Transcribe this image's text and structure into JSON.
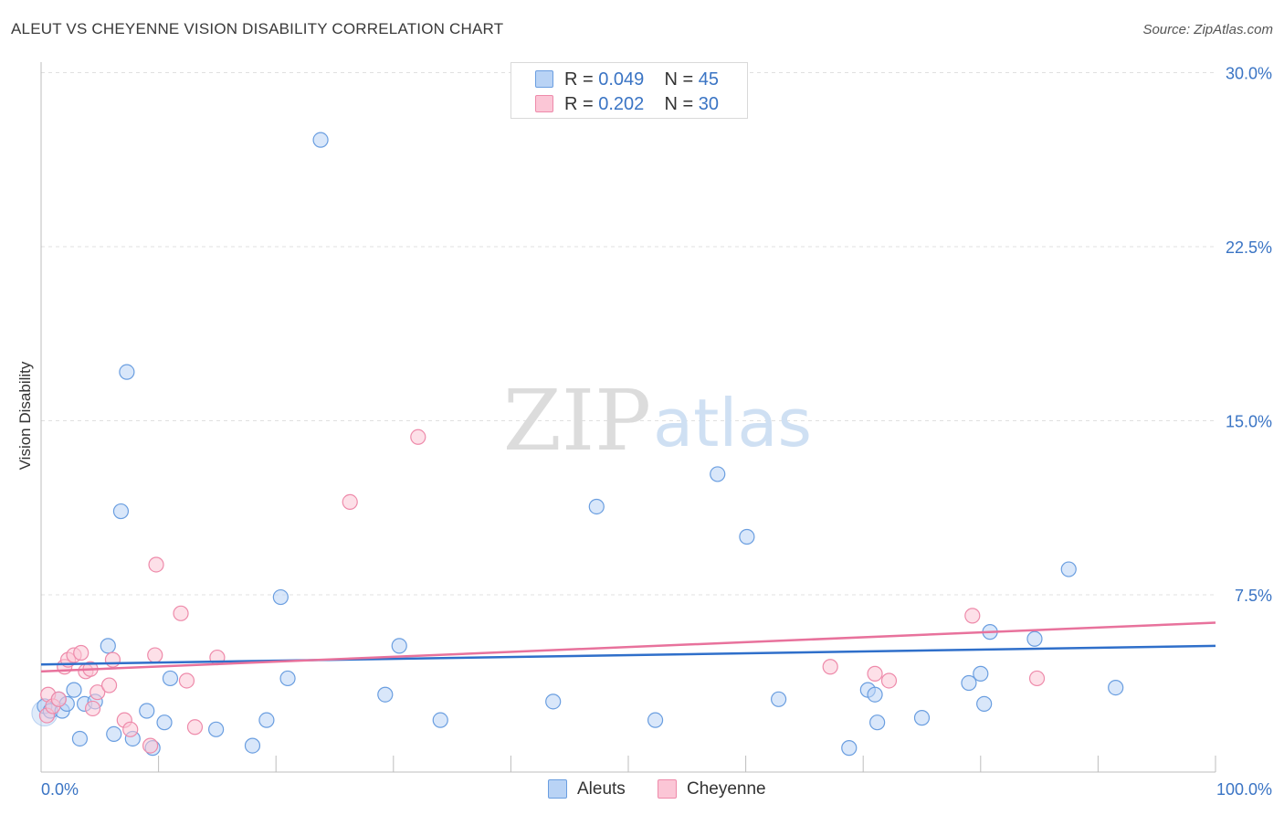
{
  "title": "ALEUT VS CHEYENNE VISION DISABILITY CORRELATION CHART",
  "source": "Source: ZipAtlas.com",
  "watermark": {
    "zip": "ZIP",
    "atlas": "atlas"
  },
  "colors": {
    "aleut_fill": "#b9d3f5",
    "aleut_stroke": "#6a9ee0",
    "aleut_line": "#2f6fca",
    "cheyenne_fill": "#fbc6d6",
    "cheyenne_stroke": "#ee8aaa",
    "cheyenne_line": "#e8729c",
    "axis_label": "#3a74c4",
    "grid": "#e0e0e0"
  },
  "legend": {
    "rows": [
      {
        "r_label": "R =",
        "r_value": "0.049",
        "n_label": "N =",
        "n_value": "45"
      },
      {
        "r_label": "R =",
        "r_value": "0.202",
        "n_label": "N =",
        "n_value": "30"
      }
    ],
    "bottom": [
      "Aleuts",
      "Cheyenne"
    ]
  },
  "chart_data": {
    "type": "scatter",
    "title": "ALEUT VS CHEYENNE VISION DISABILITY CORRELATION CHART",
    "xlabel": "",
    "ylabel": "Vision Disability",
    "xlim": [
      0,
      100
    ],
    "ylim": [
      0,
      31
    ],
    "x_tick_labels": [
      "0.0%",
      "100.0%"
    ],
    "y_ticks": [
      7.5,
      15.0,
      22.5,
      30.0
    ],
    "y_tick_labels": [
      "7.5%",
      "15.0%",
      "22.5%",
      "30.0%"
    ],
    "grid": true,
    "series": [
      {
        "name": "Aleuts",
        "trend": {
          "x": [
            0,
            100
          ],
          "y": [
            4.5,
            5.3
          ]
        },
        "points": [
          [
            0.3,
            2.7
          ],
          [
            0.8,
            2.5
          ],
          [
            1.5,
            3.0
          ],
          [
            1.8,
            2.5
          ],
          [
            2.2,
            2.8
          ],
          [
            2.8,
            3.4
          ],
          [
            3.3,
            1.3
          ],
          [
            3.7,
            2.8
          ],
          [
            4.6,
            2.9
          ],
          [
            5.7,
            5.3
          ],
          [
            6.2,
            1.5
          ],
          [
            6.8,
            11.1
          ],
          [
            7.3,
            17.1
          ],
          [
            7.8,
            1.3
          ],
          [
            9.0,
            2.5
          ],
          [
            9.5,
            0.9
          ],
          [
            10.5,
            2.0
          ],
          [
            11.0,
            3.9
          ],
          [
            14.9,
            1.7
          ],
          [
            18.0,
            1.0
          ],
          [
            19.2,
            2.1
          ],
          [
            20.4,
            7.4
          ],
          [
            21.0,
            3.9
          ],
          [
            23.8,
            27.1
          ],
          [
            29.3,
            3.2
          ],
          [
            30.5,
            5.3
          ],
          [
            34.0,
            2.1
          ],
          [
            43.6,
            2.9
          ],
          [
            47.3,
            11.3
          ],
          [
            52.3,
            2.1
          ],
          [
            57.6,
            12.7
          ],
          [
            60.1,
            10.0
          ],
          [
            62.8,
            3.0
          ],
          [
            68.8,
            0.9
          ],
          [
            70.4,
            3.4
          ],
          [
            71.0,
            3.2
          ],
          [
            71.2,
            2.0
          ],
          [
            75.0,
            2.2
          ],
          [
            79.0,
            3.7
          ],
          [
            80.0,
            4.1
          ],
          [
            80.3,
            2.8
          ],
          [
            80.8,
            5.9
          ],
          [
            84.6,
            5.6
          ],
          [
            87.5,
            8.6
          ],
          [
            91.5,
            3.5
          ]
        ]
      },
      {
        "name": "Cheyenne",
        "trend": {
          "x": [
            0,
            100
          ],
          "y": [
            4.2,
            6.3
          ]
        },
        "points": [
          [
            0.5,
            2.3
          ],
          [
            0.6,
            3.2
          ],
          [
            1.0,
            2.7
          ],
          [
            1.5,
            3.0
          ],
          [
            2.0,
            4.4
          ],
          [
            2.3,
            4.7
          ],
          [
            2.8,
            4.9
          ],
          [
            3.4,
            5.0
          ],
          [
            3.8,
            4.2
          ],
          [
            4.2,
            4.3
          ],
          [
            4.4,
            2.6
          ],
          [
            4.8,
            3.3
          ],
          [
            5.8,
            3.6
          ],
          [
            6.1,
            4.7
          ],
          [
            7.1,
            2.1
          ],
          [
            7.6,
            1.7
          ],
          [
            9.3,
            1.0
          ],
          [
            9.7,
            4.9
          ],
          [
            9.8,
            8.8
          ],
          [
            11.9,
            6.7
          ],
          [
            12.4,
            3.8
          ],
          [
            13.1,
            1.8
          ],
          [
            15.0,
            4.8
          ],
          [
            26.3,
            11.5
          ],
          [
            32.1,
            14.3
          ],
          [
            67.2,
            4.4
          ],
          [
            71.0,
            4.1
          ],
          [
            72.2,
            3.8
          ],
          [
            79.3,
            6.6
          ],
          [
            84.8,
            3.9
          ]
        ]
      }
    ]
  }
}
